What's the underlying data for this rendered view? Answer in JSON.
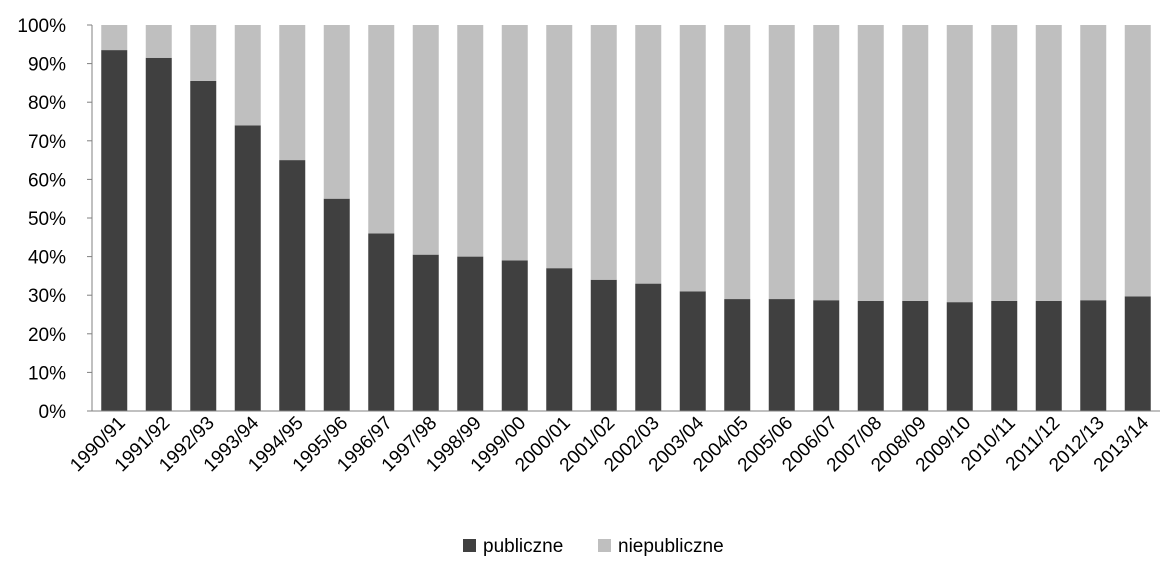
{
  "chart_data": {
    "type": "bar",
    "stacked": true,
    "percent_stacked": true,
    "categories": [
      "1990/91",
      "1991/92",
      "1992/93",
      "1993/94",
      "1994/95",
      "1995/96",
      "1996/97",
      "1997/98",
      "1998/99",
      "1999/00",
      "2000/01",
      "2001/02",
      "2002/03",
      "2003/04",
      "2004/05",
      "2005/06",
      "2006/07",
      "2007/08",
      "2008/09",
      "2009/10",
      "2010/11",
      "2011/12",
      "2012/13",
      "2013/14"
    ],
    "series": [
      {
        "name": "publiczne",
        "color": "#404040",
        "values": [
          93.5,
          91.5,
          85.5,
          74.0,
          65.0,
          55.0,
          46.0,
          40.5,
          40.0,
          39.0,
          37.0,
          34.0,
          33.0,
          31.0,
          29.0,
          29.0,
          28.7,
          28.5,
          28.5,
          28.2,
          28.5,
          28.5,
          28.7,
          29.7
        ]
      },
      {
        "name": "niepubliczne",
        "color": "#bfbfbf",
        "values": [
          6.5,
          8.5,
          14.5,
          26.0,
          35.0,
          45.0,
          54.0,
          59.5,
          60.0,
          61.0,
          63.0,
          66.0,
          67.0,
          69.0,
          71.0,
          71.0,
          71.3,
          71.5,
          71.5,
          71.8,
          71.5,
          71.5,
          71.3,
          70.3
        ]
      }
    ],
    "y_ticks": [
      "0%",
      "10%",
      "20%",
      "30%",
      "40%",
      "50%",
      "60%",
      "70%",
      "80%",
      "90%",
      "100%"
    ],
    "ylim": [
      0,
      100
    ],
    "title": "",
    "xlabel": "",
    "ylabel": "",
    "grid": false,
    "legend_position": "bottom"
  }
}
